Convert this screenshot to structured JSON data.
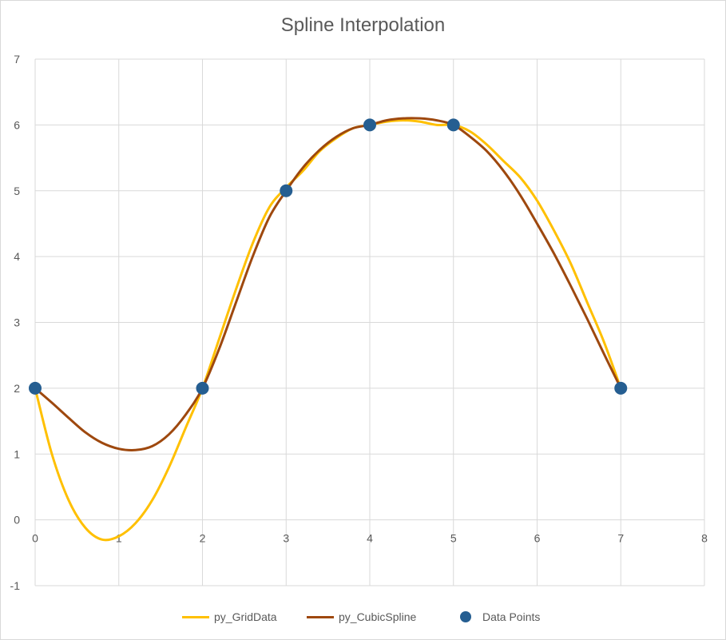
{
  "chart_data": {
    "type": "line",
    "title": "Spline Interpolation",
    "xlabel": "",
    "ylabel": "",
    "xlim": [
      0,
      8
    ],
    "ylim": [
      -1,
      7
    ],
    "xticks": [
      "0",
      "1",
      "2",
      "3",
      "4",
      "5",
      "6",
      "7",
      "8"
    ],
    "yticks": [
      "-1",
      "0",
      "1",
      "2",
      "3",
      "4",
      "5",
      "6",
      "7"
    ],
    "grid": true,
    "legend_position": "bottom",
    "series": [
      {
        "name": "py_GridData",
        "type": "line",
        "color": "#FFC000",
        "x": [
          0,
          0.2,
          0.4,
          0.6,
          0.8,
          1.0,
          1.2,
          1.4,
          1.6,
          1.8,
          2.0,
          2.2,
          2.4,
          2.6,
          2.8,
          3.0,
          3.2,
          3.4,
          3.6,
          3.8,
          4.0,
          4.2,
          4.4,
          4.6,
          4.8,
          5.0,
          5.2,
          5.4,
          5.6,
          5.8,
          6.0,
          6.2,
          6.4,
          6.6,
          6.8,
          7.0
        ],
        "y": [
          2,
          1.0,
          0.3,
          -0.12,
          -0.3,
          -0.25,
          -0.05,
          0.3,
          0.8,
          1.4,
          2.0,
          2.75,
          3.5,
          4.2,
          4.75,
          5.05,
          5.3,
          5.6,
          5.8,
          5.95,
          6.0,
          6.05,
          6.07,
          6.05,
          6.0,
          6.0,
          5.9,
          5.7,
          5.45,
          5.2,
          4.85,
          4.4,
          3.9,
          3.3,
          2.7,
          2.0
        ]
      },
      {
        "name": "py_CubicSpline",
        "type": "line",
        "color": "#9E480E",
        "x": [
          0,
          0.2,
          0.4,
          0.6,
          0.8,
          1.0,
          1.2,
          1.4,
          1.6,
          1.8,
          2.0,
          2.2,
          2.4,
          2.6,
          2.8,
          3.0,
          3.2,
          3.4,
          3.6,
          3.8,
          4.0,
          4.2,
          4.4,
          4.6,
          4.8,
          5.0,
          5.2,
          5.4,
          5.6,
          5.8,
          6.0,
          6.2,
          6.4,
          6.6,
          6.8,
          7.0
        ],
        "y": [
          2,
          1.78,
          1.55,
          1.33,
          1.17,
          1.08,
          1.06,
          1.12,
          1.3,
          1.6,
          2.0,
          2.6,
          3.3,
          4.0,
          4.6,
          5.0,
          5.35,
          5.62,
          5.82,
          5.95,
          6.0,
          6.07,
          6.1,
          6.1,
          6.07,
          6.0,
          5.82,
          5.6,
          5.3,
          4.93,
          4.5,
          4.05,
          3.56,
          3.05,
          2.52,
          2.0
        ]
      },
      {
        "name": "Data Points",
        "type": "scatter",
        "color": "#255E91",
        "x": [
          0,
          2,
          3,
          4,
          5,
          7
        ],
        "y": [
          2,
          2,
          5,
          6,
          6,
          2
        ]
      }
    ]
  }
}
